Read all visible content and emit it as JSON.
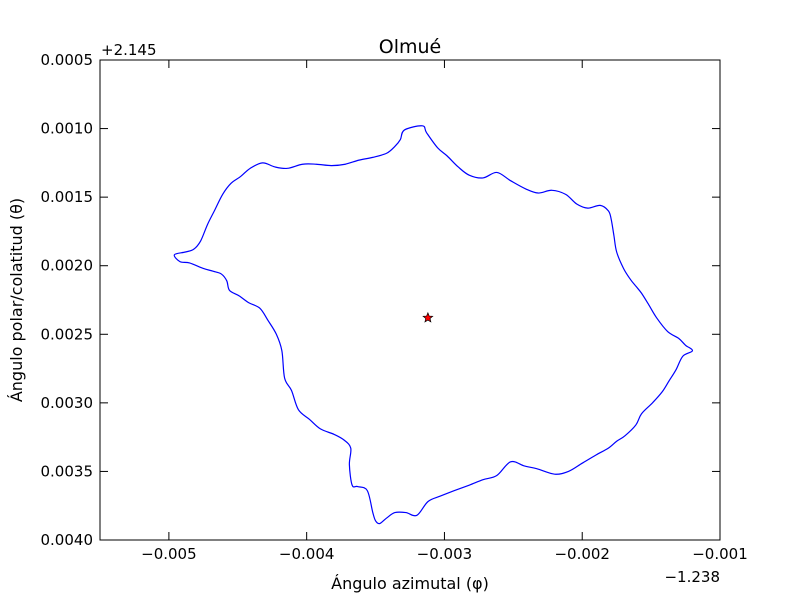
{
  "chart_data": {
    "type": "line",
    "title": "Olmué",
    "xlabel": "Ángulo azimutal (φ)",
    "ylabel": "Ángulo polar/colatitud (θ)",
    "x_offset_label": "−1.238",
    "y_offset_label": "+2.145",
    "xlim": [
      -0.0055,
      -0.001
    ],
    "ylim": [
      0.004,
      0.0005
    ],
    "y_inverted": true,
    "grid": false,
    "xticks": [
      -0.005,
      -0.004,
      -0.003,
      -0.002,
      -0.001
    ],
    "xtick_labels": [
      "−0.005",
      "−0.004",
      "−0.003",
      "−0.002",
      "−0.001"
    ],
    "yticks": [
      0.0005,
      0.001,
      0.0015,
      0.002,
      0.0025,
      0.003,
      0.0035,
      0.004
    ],
    "ytick_labels": [
      "0.0005",
      "0.0010",
      "0.0015",
      "0.0020",
      "0.0025",
      "0.0030",
      "0.0035",
      "0.0040"
    ],
    "series": [
      {
        "color": "#0000ff",
        "x": [
          -0.00329,
          -0.00316,
          -0.00313,
          -0.00305,
          -0.00298,
          -0.0029,
          -0.00282,
          -0.00272,
          -0.00262,
          -0.00252,
          -0.00241,
          -0.00232,
          -0.00222,
          -0.00212,
          -0.00204,
          -0.00196,
          -0.00187,
          -0.00181,
          -0.00179,
          -0.00177,
          -0.00175,
          -0.0017,
          -0.00165,
          -0.00161,
          -0.00157,
          -0.00152,
          -0.00146,
          -0.00138,
          -0.0013,
          -0.00125,
          -0.0012,
          -0.00127,
          -0.00132,
          -0.00137,
          -0.00142,
          -0.00149,
          -0.00157,
          -0.00161,
          -0.00169,
          -0.00175,
          -0.00181,
          -0.0019,
          -0.002,
          -0.0021,
          -0.0022,
          -0.00233,
          -0.00242,
          -0.00252,
          -0.00262,
          -0.00272,
          -0.00282,
          -0.00293,
          -0.00303,
          -0.00312,
          -0.0032,
          -0.00328,
          -0.00336,
          -0.00342,
          -0.00347,
          -0.0035,
          -0.00352,
          -0.00356,
          -0.00363,
          -0.00367,
          -0.00369,
          -0.00368,
          -0.00373,
          -0.0038,
          -0.0039,
          -0.00398,
          -0.00406,
          -0.00411,
          -0.00416,
          -0.00418,
          -0.00422,
          -0.00428,
          -0.00434,
          -0.00442,
          -0.00449,
          -0.00456,
          -0.00458,
          -0.00462,
          -0.00468,
          -0.00475,
          -0.00485,
          -0.00492,
          -0.00496,
          -0.00488,
          -0.00482,
          -0.00477,
          -0.00472,
          -0.00467,
          -0.00461,
          -0.00455,
          -0.00448,
          -0.00441,
          -0.00432,
          -0.00423,
          -0.00414,
          -0.00403,
          -0.00393,
          -0.00382,
          -0.00372,
          -0.00362,
          -0.00352,
          -0.00342,
          -0.00336,
          -0.00332,
          -0.00329
        ],
        "y": [
          0.00101,
          0.00098,
          0.00103,
          0.00114,
          0.0012,
          0.00128,
          0.00134,
          0.00136,
          0.00132,
          0.00138,
          0.00144,
          0.00147,
          0.00145,
          0.00148,
          0.00155,
          0.00158,
          0.00156,
          0.0016,
          0.00166,
          0.00178,
          0.0019,
          0.00202,
          0.0021,
          0.00215,
          0.0022,
          0.00228,
          0.00238,
          0.00248,
          0.00253,
          0.00258,
          0.00262,
          0.00266,
          0.00276,
          0.00284,
          0.00292,
          0.003,
          0.00308,
          0.00316,
          0.00324,
          0.00328,
          0.00333,
          0.00338,
          0.00344,
          0.0035,
          0.00352,
          0.00348,
          0.00346,
          0.00343,
          0.00353,
          0.00356,
          0.0036,
          0.00364,
          0.00368,
          0.00372,
          0.00382,
          0.0038,
          0.0038,
          0.00384,
          0.00388,
          0.00386,
          0.0038,
          0.00364,
          0.00361,
          0.0036,
          0.00345,
          0.00333,
          0.00327,
          0.00323,
          0.00319,
          0.00312,
          0.00305,
          0.00291,
          0.00282,
          0.00262,
          0.0025,
          0.0024,
          0.00231,
          0.00227,
          0.00222,
          0.00218,
          0.00211,
          0.00206,
          0.00204,
          0.00202,
          0.00198,
          0.00197,
          0.00192,
          0.0019,
          0.00188,
          0.00182,
          0.0017,
          0.0016,
          0.00148,
          0.0014,
          0.00135,
          0.00129,
          0.00125,
          0.00128,
          0.00129,
          0.00126,
          0.00126,
          0.00127,
          0.00126,
          0.00123,
          0.00121,
          0.00118,
          0.00113,
          0.00108,
          0.00101
        ]
      },
      {
        "type": "scatter",
        "marker": "star",
        "color": "#ff0000",
        "x": [
          -0.00312
        ],
        "y": [
          0.00238
        ]
      }
    ]
  }
}
